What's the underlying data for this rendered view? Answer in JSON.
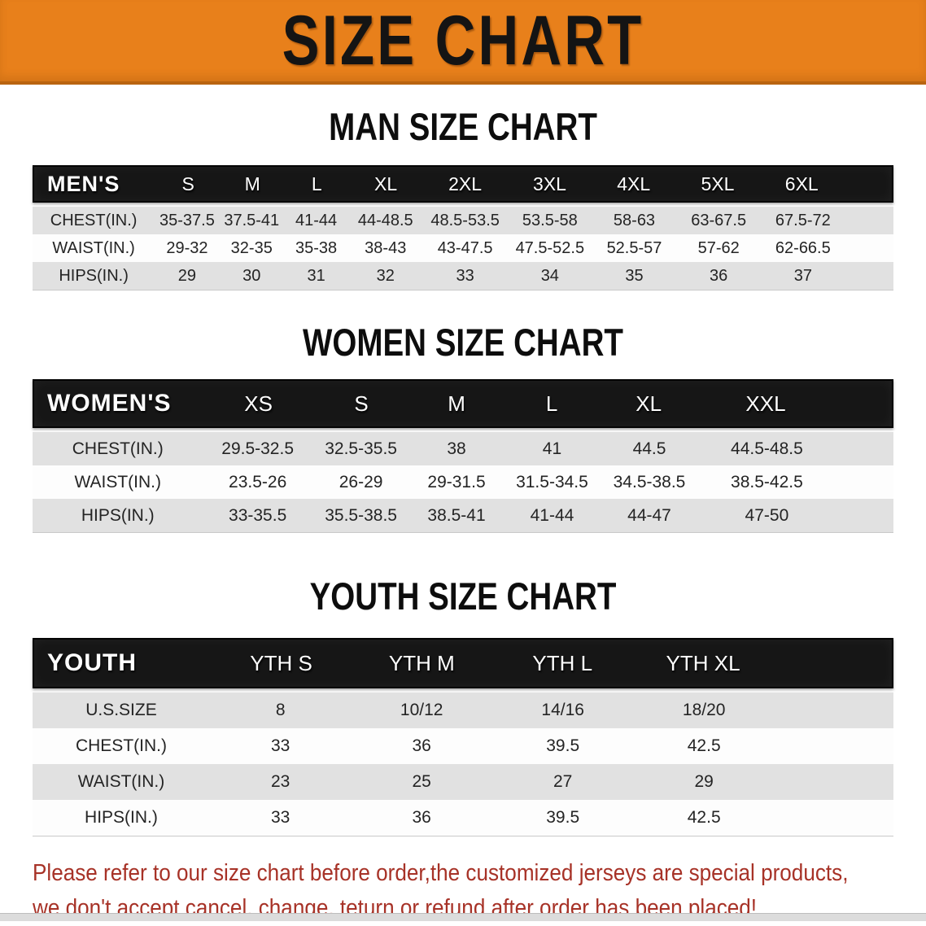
{
  "banner": {
    "title": "SIZE CHART"
  },
  "colors": {
    "banner_bg": "#e8801b",
    "header_bar_bg": "#161616",
    "stripe_gray": "#e1e1e1",
    "footer_red": "#a73227"
  },
  "sections": [
    {
      "id": "men",
      "heading": "MAN SIZE CHART",
      "table": {
        "label": "MEN'S",
        "columns": [
          "S",
          "M",
          "L",
          "XL",
          "2XL",
          "3XL",
          "4XL",
          "5XL",
          "6XL"
        ],
        "rows": [
          {
            "label": "CHEST(IN.)",
            "values": [
              "35-37.5",
              "37.5-41",
              "41-44",
              "44-48.5",
              "48.5-53.5",
              "53.5-58",
              "58-63",
              "63-67.5",
              "67.5-72"
            ]
          },
          {
            "label": "WAIST(IN.)",
            "values": [
              "29-32",
              "32-35",
              "35-38",
              "38-43",
              "43-47.5",
              "47.5-52.5",
              "52.5-57",
              "57-62",
              "62-66.5"
            ]
          },
          {
            "label": "HIPS(IN.)",
            "values": [
              "29",
              "30",
              "31",
              "32",
              "33",
              "34",
              "35",
              "36",
              "37"
            ]
          }
        ]
      }
    },
    {
      "id": "women",
      "heading": "WOMEN SIZE CHART",
      "table": {
        "label": "WOMEN'S",
        "columns": [
          "XS",
          "S",
          "M",
          "L",
          "XL",
          "XXL"
        ],
        "rows": [
          {
            "label": "CHEST(IN.)",
            "values": [
              "29.5-32.5",
              "32.5-35.5",
              "38",
              "41",
              "44.5",
              "44.5-48.5"
            ]
          },
          {
            "label": "WAIST(IN.)",
            "values": [
              "23.5-26",
              "26-29",
              "29-31.5",
              "31.5-34.5",
              "34.5-38.5",
              "38.5-42.5"
            ]
          },
          {
            "label": "HIPS(IN.)",
            "values": [
              "33-35.5",
              "35.5-38.5",
              "38.5-41",
              "41-44",
              "44-47",
              "47-50"
            ]
          }
        ]
      }
    },
    {
      "id": "youth",
      "heading": "YOUTH SIZE CHART",
      "table": {
        "label": "YOUTH",
        "columns": [
          "YTH S",
          "YTH M",
          "YTH L",
          "YTH XL"
        ],
        "rows": [
          {
            "label": "U.S.SIZE",
            "values": [
              "8",
              "10/12",
              "14/16",
              "18/20"
            ]
          },
          {
            "label": "CHEST(IN.)",
            "values": [
              "33",
              "36",
              "39.5",
              "42.5"
            ]
          },
          {
            "label": "WAIST(IN.)",
            "values": [
              "23",
              "25",
              "27",
              "29"
            ]
          },
          {
            "label": "HIPS(IN.)",
            "values": [
              "33",
              "36",
              "39.5",
              "42.5"
            ]
          }
        ]
      }
    }
  ],
  "footer": {
    "lines": [
      "Please refer to our size chart before order,the customized jerseys are special products,",
      "we don't accept cancel, change, teturn or refund after order has been placed!"
    ]
  }
}
